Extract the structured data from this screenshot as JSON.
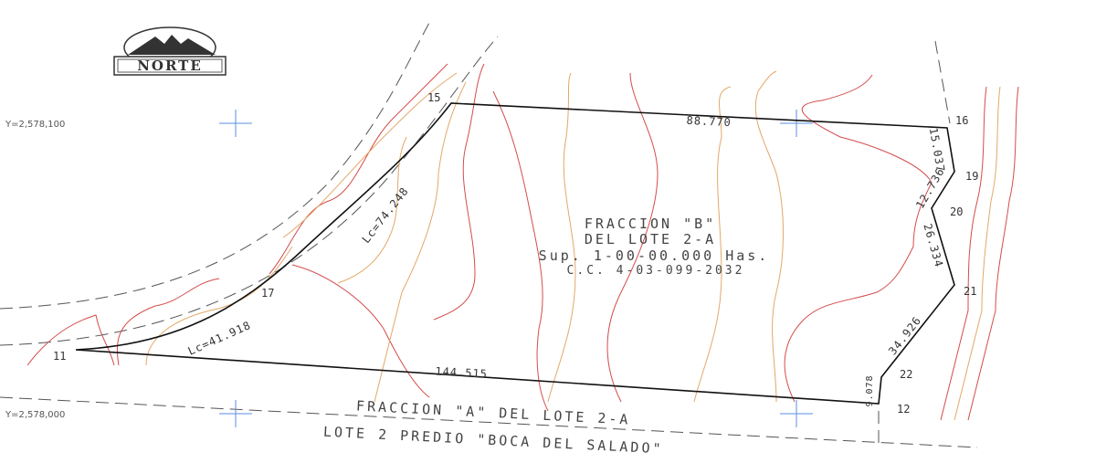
{
  "logo": "NORTE",
  "grid_labels": [
    "Y=2,578,100",
    "Y=2,578,000"
  ],
  "vertices": [
    "15",
    "16",
    "19",
    "20",
    "21",
    "22",
    "12",
    "11",
    "17"
  ],
  "distances": [
    "88.770",
    "15.037",
    "12.736",
    "26.334",
    "34.926",
    "9.078",
    "144.515",
    "Lc=41.918",
    "Lc=74.248"
  ],
  "parcel": [
    "FRACCION \"B\"",
    "DEL LOTE 2-A",
    "Sup. 1-00-00.000 Has.",
    "C.C. 4-03-099-2032"
  ],
  "adjacent": [
    "FRACCION \"A\" DEL LOTE 2-A",
    "LOTE 2 PREDIO \"BOCA DEL SALADO\""
  ]
}
